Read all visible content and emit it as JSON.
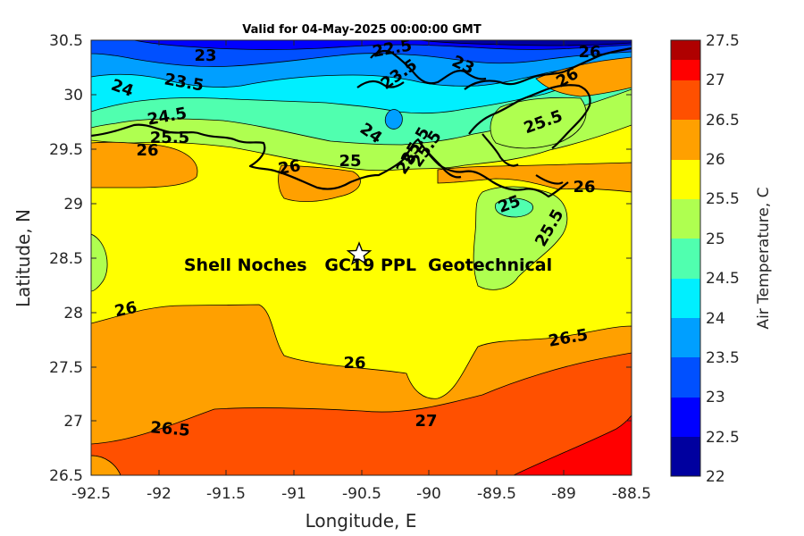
{
  "title": "Valid for 04-May-2025 00:00:00 GMT",
  "xlabel": "Longitude, E",
  "ylabel": "Latitude, N",
  "colorbar_label": "Air Temperature, C",
  "x_ticks": [
    "-92.5",
    "-92",
    "-91.5",
    "-91",
    "-90.5",
    "-90",
    "-89.5",
    "-89",
    "-88.5"
  ],
  "y_ticks": [
    "30.5",
    "30",
    "29.5",
    "29",
    "28.5",
    "28",
    "27.5",
    "27",
    "26.5"
  ],
  "xlim": [
    -92.5,
    -88.5
  ],
  "ylim": [
    26.5,
    30.5
  ],
  "colorbar": {
    "ticks": [
      "27.5",
      "27",
      "26.5",
      "26",
      "25.5",
      "25",
      "24.5",
      "24",
      "23.5",
      "23",
      "22.5",
      "22"
    ],
    "range": [
      22,
      27.5
    ],
    "colors": [
      "#00009f",
      "#0000ff",
      "#0050ff",
      "#009fff",
      "#00efff",
      "#50ffaf",
      "#afff50",
      "#ffff00",
      "#ffa000",
      "#ff5000",
      "#ff0000",
      "#af0000"
    ]
  },
  "site": {
    "label": "Shell Noches   GC19 PPL  Geotechnical",
    "lon": -90.52,
    "lat": 28.57
  },
  "contour_labels": [
    "22.5",
    "23",
    "23.5",
    "23.5",
    "23",
    "24",
    "24.5",
    "25.5",
    "26",
    "24",
    "25",
    "25.5",
    "26",
    "25",
    "25.5",
    "25.5",
    "26",
    "26",
    "25",
    "25.5",
    "26",
    "26",
    "26",
    "26.5",
    "26.5",
    "27"
  ]
}
